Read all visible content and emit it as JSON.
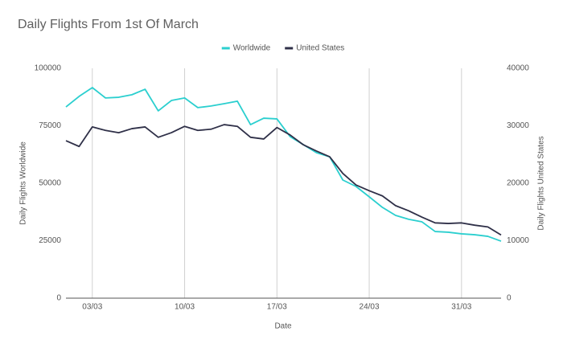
{
  "chart_data": {
    "type": "line",
    "title": "Daily Flights From 1st Of March",
    "x_label": "Date",
    "y_label": "Daily Flights Worldwide",
    "y2_label": "Daily Flights United States",
    "categories": [
      null,
      null,
      "03/03",
      null,
      null,
      null,
      null,
      null,
      null,
      "10/03",
      null,
      null,
      null,
      null,
      null,
      null,
      "17/03",
      null,
      null,
      null,
      null,
      null,
      null,
      "24/03",
      null,
      null,
      null,
      null,
      null,
      null,
      "31/03",
      null,
      null,
      null
    ],
    "series": [
      {
        "name": "Worldwide",
        "color": "#2bcfcf",
        "values": [
          83200,
          87800,
          91600,
          87100,
          87400,
          88500,
          90900,
          81500,
          86000,
          87100,
          82900,
          83600,
          84600,
          85700,
          75500,
          78300,
          78000,
          70300,
          66800,
          63300,
          61500,
          51400,
          48600,
          44100,
          39500,
          36000,
          34300,
          33200,
          29000,
          28700,
          28000,
          27600,
          26900,
          24800
        ]
      },
      {
        "name": "United States",
        "color": "#2f3048",
        "axis": "y2",
        "values": [
          27400,
          26400,
          29800,
          29200,
          28800,
          29500,
          29800,
          28000,
          28800,
          29900,
          29200,
          29400,
          30200,
          29900,
          28000,
          27700,
          29700,
          28400,
          26700,
          25600,
          24600,
          21700,
          19700,
          18700,
          17800,
          16100,
          15200,
          14100,
          13100,
          13000,
          13100,
          12700,
          12400,
          11000
        ]
      }
    ],
    "ylim": [
      0,
      100000
    ],
    "yticks": [
      0,
      25000,
      50000,
      75000,
      100000
    ],
    "y2lim": [
      0,
      40000
    ],
    "y2ticks": [
      0,
      10000,
      20000,
      30000,
      40000
    ],
    "legend": "top"
  }
}
